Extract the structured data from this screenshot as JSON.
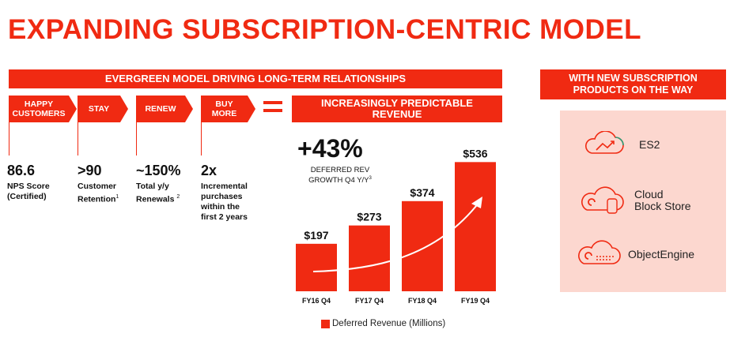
{
  "title": "EXPANDING SUBSCRIPTION-CENTRIC MODEL",
  "banner": "EVERGREEN MODEL DRIVING LONG-TERM RELATIONSHIPS",
  "side_banner": {
    "line1": "WITH NEW SUBSCRIPTION",
    "line2": "PRODUCTS ON THE WAY"
  },
  "steps": [
    {
      "line1": "HAPPY",
      "line2": "CUSTOMERS"
    },
    {
      "line1": "STAY",
      "line2": ""
    },
    {
      "line1": "RENEW",
      "line2": ""
    },
    {
      "line1": "BUY",
      "line2": "MORE"
    }
  ],
  "metrics": [
    {
      "value": "86.6",
      "lines": [
        "NPS Score",
        "(Certified)"
      ],
      "sup": ""
    },
    {
      "value": ">90",
      "lines": [
        "Customer",
        "Retention"
      ],
      "sup": "1"
    },
    {
      "value": "~150%",
      "lines": [
        "Total y/y",
        "Renewals"
      ],
      "sup": "2"
    },
    {
      "value": "2x",
      "lines": [
        "Incremental",
        "purchases",
        "within the",
        "first 2 years"
      ],
      "sup": ""
    }
  ],
  "predictable_banner": {
    "line1": "INCREASINGLY PREDICTABLE",
    "line2": "REVENUE"
  },
  "growth": {
    "value": "+43%",
    "line1": "DEFERRED REV",
    "line2": "GROWTH Q4 Y/Y",
    "sup": "3"
  },
  "chart_data": {
    "type": "bar",
    "categories": [
      "FY16 Q4",
      "FY17 Q4",
      "FY18 Q4",
      "FY19 Q4"
    ],
    "values": [
      197,
      273,
      374,
      536
    ],
    "value_labels": [
      "$197",
      "$273",
      "$374",
      "$536"
    ],
    "legend": "Deferred Revenue (Millions)",
    "color": "#f02a12",
    "ylim": [
      0,
      560
    ],
    "trend_arrow": true
  },
  "products": [
    {
      "name_lines": [
        "ES2"
      ],
      "icon": "cloud-growth-icon"
    },
    {
      "name_lines": [
        "Cloud",
        "Block Store"
      ],
      "icon": "cloud-block-store-icon"
    },
    {
      "name_lines": [
        "ObjectEngine"
      ],
      "icon": "cloud-object-engine-icon"
    }
  ],
  "colors": {
    "accent": "#f02a12",
    "product_panel": "#fcd7cf"
  }
}
